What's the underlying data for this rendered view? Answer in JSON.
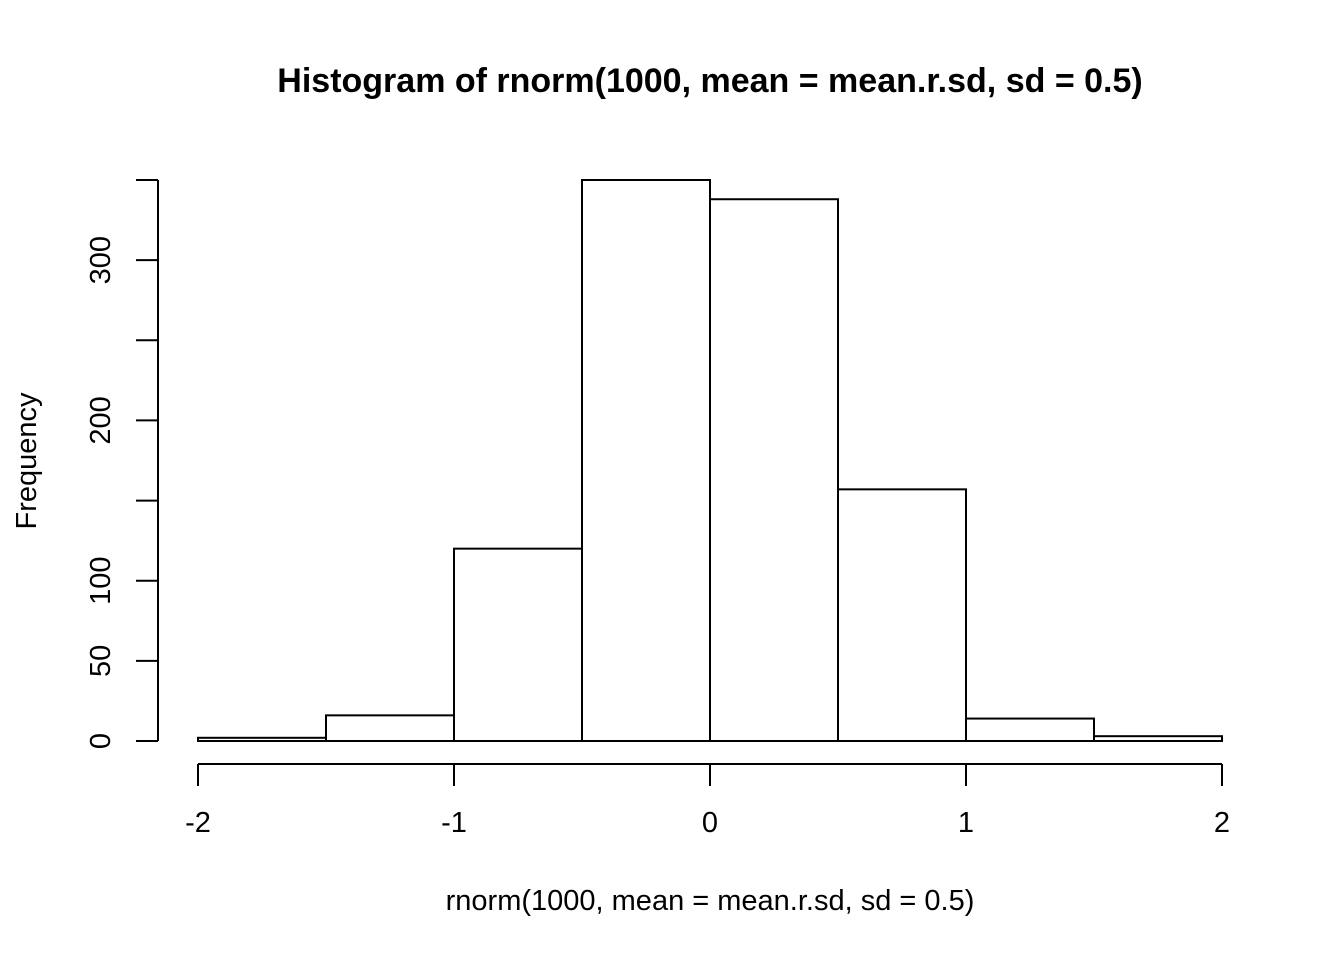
{
  "chart_data": {
    "type": "bar",
    "title": "Histogram of rnorm(1000, mean = mean.r.sd, sd = 0.5)",
    "xlabel": "rnorm(1000, mean = mean.r.sd, sd = 0.5)",
    "ylabel": "Frequency",
    "bins": [
      {
        "from": -2.0,
        "to": -1.5,
        "count": 2
      },
      {
        "from": -1.5,
        "to": -1.0,
        "count": 16
      },
      {
        "from": -1.0,
        "to": -0.5,
        "count": 120
      },
      {
        "from": -0.5,
        "to": 0.0,
        "count": 350
      },
      {
        "from": 0.0,
        "to": 0.5,
        "count": 338
      },
      {
        "from": 0.5,
        "to": 1.0,
        "count": 157
      },
      {
        "from": 1.0,
        "to": 1.5,
        "count": 14
      },
      {
        "from": 1.5,
        "to": 2.0,
        "count": 3
      }
    ],
    "xlim": [
      -2,
      2
    ],
    "ylim": [
      0,
      350
    ],
    "x_ticks": [
      -2,
      -1,
      0,
      1,
      2
    ],
    "x_tick_labels": [
      "-2",
      "-1",
      "0",
      "1",
      "2"
    ],
    "y_ticks": [
      0,
      50,
      100,
      150,
      200,
      250,
      300,
      350
    ],
    "y_tick_labels": [
      "0",
      "50",
      "100",
      "",
      "200",
      "",
      "300",
      ""
    ],
    "grid": false,
    "legend": "none",
    "bar_fill": "#ffffff",
    "bar_stroke": "#000000"
  }
}
